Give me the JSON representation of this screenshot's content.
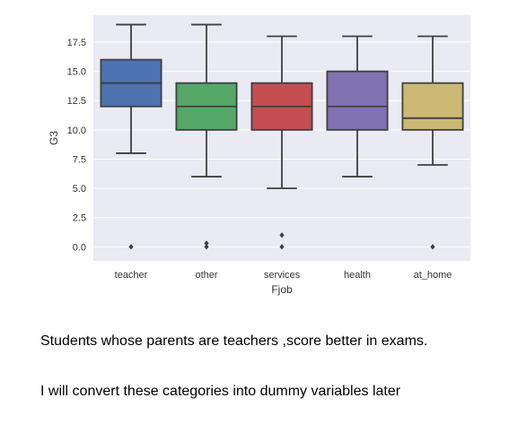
{
  "chart_data": {
    "type": "box",
    "xlabel": "Fjob",
    "ylabel": "G3",
    "ylim": [
      -1.2,
      19.8
    ],
    "yticks": [
      "0.0",
      "2.5",
      "5.0",
      "7.5",
      "10.0",
      "12.5",
      "15.0",
      "17.5"
    ],
    "grid": true,
    "background": "#eaeaf2",
    "categories": [
      "teacher",
      "other",
      "services",
      "health",
      "at_home"
    ],
    "boxes": [
      {
        "category": "teacher",
        "whisker_low": 8,
        "q1": 12,
        "median": 14,
        "q3": 16,
        "whisker_high": 19,
        "outliers": [
          0
        ],
        "color": "#4c72b0"
      },
      {
        "category": "other",
        "whisker_low": 6,
        "q1": 10,
        "median": 12,
        "q3": 14,
        "whisker_high": 19,
        "outliers": [
          0,
          0.3
        ],
        "color": "#55a868"
      },
      {
        "category": "services",
        "whisker_low": 5,
        "q1": 10,
        "median": 12,
        "q3": 14,
        "whisker_high": 18,
        "outliers": [
          0,
          1
        ],
        "color": "#c44e52"
      },
      {
        "category": "health",
        "whisker_low": 6,
        "q1": 10,
        "median": 12,
        "q3": 15,
        "whisker_high": 18,
        "outliers": [],
        "color": "#8172b2"
      },
      {
        "category": "at_home",
        "whisker_low": 7,
        "q1": 10,
        "median": 11,
        "q3": 14,
        "whisker_high": 18,
        "outliers": [
          0
        ],
        "color": "#ccb974"
      }
    ]
  },
  "text": {
    "caption_1": "Students whose parents are teachers ,score better in exams.",
    "caption_2": "I will convert these categories into dummy variables later"
  }
}
